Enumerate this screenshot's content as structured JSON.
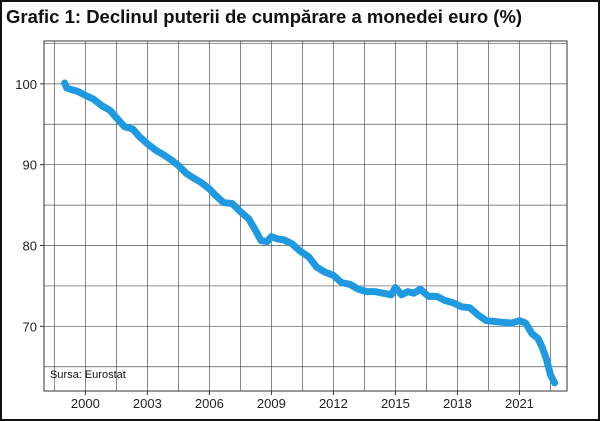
{
  "title": "Grafic 1: Declinul puterii de cumpărare a monedei euro (%)",
  "source_note": "Sursa: Eurostat",
  "chart_data": {
    "type": "line",
    "title": "Grafic 1: Declinul puterii de cumpărare a monedei euro (%)",
    "xlabel": "",
    "ylabel": "",
    "x_ticks": [
      2000,
      2003,
      2006,
      2009,
      2012,
      2015,
      2018,
      2021
    ],
    "y_ticks": [
      70,
      80,
      90,
      100
    ],
    "xlim": [
      1998.0,
      2023.3
    ],
    "ylim": [
      62.0,
      105.3
    ],
    "grid": true,
    "legend": "none",
    "line_color": "#1f9ae0",
    "series": [
      {
        "name": "",
        "x": [
          1999.0,
          1999.1,
          1999.3,
          1999.6,
          2000.0,
          2000.4,
          2000.8,
          2001.2,
          2001.5,
          2001.9,
          2002.3,
          2002.6,
          2003.0,
          2003.4,
          2003.8,
          2004.2,
          2004.5,
          2004.9,
          2005.2,
          2005.6,
          2006.0,
          2006.3,
          2006.7,
          2007.1,
          2007.5,
          2007.9,
          2008.2,
          2008.5,
          2008.8,
          2009.0,
          2009.3,
          2009.6,
          2010.0,
          2010.4,
          2010.8,
          2011.2,
          2011.6,
          2012.0,
          2012.4,
          2012.8,
          2013.2,
          2013.6,
          2014.0,
          2014.4,
          2014.8,
          2015.0,
          2015.3,
          2015.6,
          2015.9,
          2016.2,
          2016.6,
          2017.0,
          2017.4,
          2017.8,
          2018.2,
          2018.6,
          2019.0,
          2019.4,
          2019.8,
          2020.2,
          2020.6,
          2021.0,
          2021.3,
          2021.6,
          2021.9,
          2022.1,
          2022.3,
          2022.5,
          2022.7
        ],
        "values": [
          100.1,
          99.5,
          99.3,
          99.1,
          98.6,
          98.1,
          97.3,
          96.7,
          95.8,
          94.7,
          94.4,
          93.5,
          92.6,
          91.8,
          91.2,
          90.5,
          89.9,
          88.9,
          88.4,
          87.8,
          87.0,
          86.2,
          85.3,
          85.2,
          84.2,
          83.3,
          82.0,
          80.6,
          80.5,
          81.1,
          80.8,
          80.7,
          80.2,
          79.3,
          78.6,
          77.3,
          76.7,
          76.3,
          75.4,
          75.2,
          74.6,
          74.3,
          74.3,
          74.1,
          73.9,
          74.8,
          73.9,
          74.3,
          74.1,
          74.6,
          73.7,
          73.7,
          73.2,
          72.9,
          72.4,
          72.3,
          71.4,
          70.7,
          70.6,
          70.5,
          70.4,
          70.7,
          70.4,
          69.1,
          68.5,
          67.4,
          66.0,
          64.0,
          63.0
        ]
      }
    ]
  }
}
